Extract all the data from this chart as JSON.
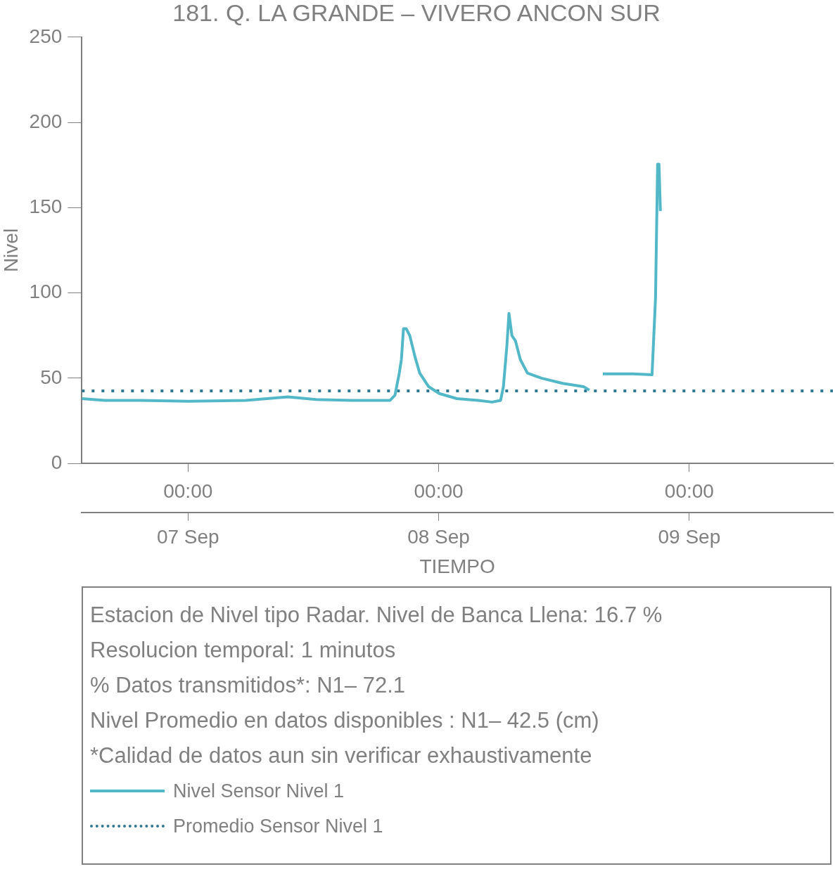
{
  "chart_data": {
    "type": "line",
    "title": "181. Q. LA GRANDE – VIVERO ANCON SUR",
    "xlabel": "TIEMPO",
    "ylabel": "Nivel",
    "x": [
      "--09-06T13:50",
      "--09-06T16:02",
      "--09-06T19:25",
      "--09-07T00:00",
      "--09-07T05:32",
      "--09-07T09:34",
      "--09-07T12:16",
      "--09-07T15:38",
      "--09-07T19:21",
      "--09-07T19:49",
      "--09-07T20:14",
      "--09-07T20:26",
      "--09-07T20:38",
      "--09-07T20:54",
      "--09-07T21:14",
      "--09-07T21:43",
      "--09-07T22:11",
      "--09-07T23:03",
      "--09-08T00:04",
      "--09-08T01:45",
      "--09-08T03:47",
      "--09-08T05:07",
      "--09-08T05:56",
      "--09-08T06:12",
      "--09-08T06:32",
      "--09-08T06:44",
      "--09-08T07:01",
      "--09-08T07:21",
      "--09-08T07:49",
      "--09-08T08:30",
      "--09-08T09:51",
      "--09-08T11:52",
      "--09-08T13:53",
      "--09-08T14:26",
      "--09-08T15:00",
      "--09-08T15:43",
      "--09-08T18:37",
      "--09-08T20:26",
      "--09-08T20:46",
      "--09-08T20:58",
      "--09-08T21:06",
      "--09-08T21:14"
    ],
    "series": [
      {
        "name": "Nivel Sensor Nivel 1",
        "color": "#52b8c8",
        "line_style": "solid",
        "values": [
          38,
          37,
          37,
          36.5,
          37,
          39,
          37.5,
          37,
          37,
          40,
          53,
          61,
          79,
          79,
          75,
          63,
          53,
          45,
          41,
          38,
          37,
          36,
          37,
          45,
          69,
          88,
          75,
          72,
          61,
          53,
          50,
          47,
          45,
          43,
          null,
          52.5,
          52.5,
          52,
          97,
          175.5,
          175.5,
          148
        ]
      },
      {
        "name": "Promedio Sensor Nivel 1",
        "color": "#2e7891",
        "line_style": "dotted",
        "x": [
          "--09-06T13:50",
          "--09-09T13:45"
        ],
        "values": [
          42.5,
          42.5
        ]
      }
    ],
    "xlim": [
      "--09-06T13:50",
      "--09-09T13:45"
    ],
    "xticks": [
      {
        "value": "--09-07T00:00",
        "label": "00:00"
      },
      {
        "value": "--09-08T00:00",
        "label": "00:00"
      },
      {
        "value": "--09-09T00:00",
        "label": "00:00"
      }
    ],
    "x2lim": [
      "--09-06T13:50",
      "--09-09T13:45"
    ],
    "x2ticks": [
      {
        "value": "--09-07T00:00",
        "label": "07 Sep"
      },
      {
        "value": "--09-08T00:00",
        "label": "08 Sep"
      },
      {
        "value": "--09-09T00:00",
        "label": "09 Sep"
      }
    ],
    "ylim": [
      0,
      250
    ],
    "yticks": [
      0,
      50,
      100,
      150,
      200,
      250
    ],
    "grid": false,
    "marker": "none",
    "legend": "bottom",
    "annotations": [
      "Estacion de Nivel tipo Radar. Nivel de Banca Llena: 16.7 %",
      "Resolucion temporal: 1 minutos",
      "% Datos transmitidos*: N1– 72.1",
      "Nivel Promedio en datos disponibles : N1– 42.5 (cm)",
      "*Calidad de datos aun sin verificar exhaustivamente"
    ]
  }
}
